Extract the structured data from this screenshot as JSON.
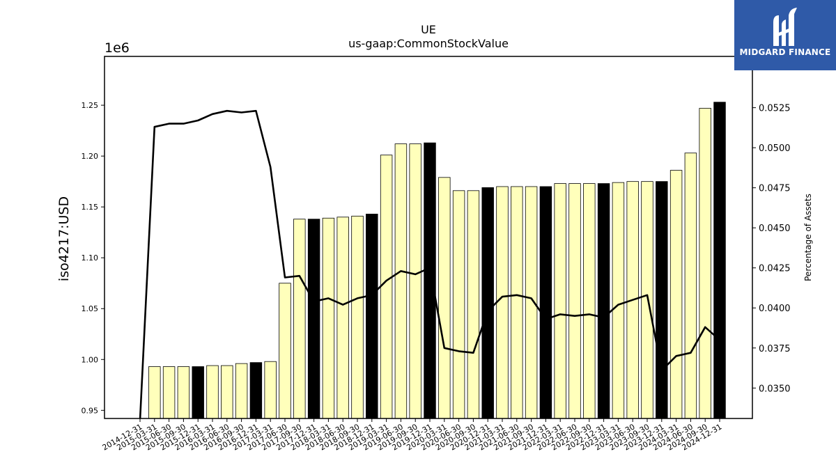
{
  "chart_data": {
    "type": "bar",
    "title": "UE",
    "subtitle": "us-gaap:CommonStockValue",
    "ylabel": "iso4217:USD",
    "y_offset_label": "1e6",
    "y2label": "Percentage of Assets",
    "ylim": [
      942000,
      1298000
    ],
    "y2lim": [
      0.0331,
      0.0557
    ],
    "yticks": [
      "0.95",
      "1.00",
      "1.05",
      "1.10",
      "1.15",
      "1.20",
      "1.25"
    ],
    "y2ticks": [
      "0.0350",
      "0.0375",
      "0.0400",
      "0.0425",
      "0.0450",
      "0.0475",
      "0.0500",
      "0.0525"
    ],
    "grid": false,
    "categories": [
      "2014-12-31",
      "2015-03-31",
      "2015-06-30",
      "2015-09-30",
      "2015-12-31",
      "2016-03-31",
      "2016-06-30",
      "2016-09-30",
      "2016-12-31",
      "2017-03-31",
      "2017-06-30",
      "2017-09-30",
      "2017-12-31",
      "2018-03-31",
      "2018-06-30",
      "2018-09-30",
      "2018-12-31",
      "2019-03-31",
      "2019-06-30",
      "2019-09-30",
      "2019-12-31",
      "2020-03-31",
      "2020-06-30",
      "2020-09-30",
      "2020-12-31",
      "2021-03-31",
      "2021-06-30",
      "2021-09-30",
      "2021-12-31",
      "2022-03-31",
      "2022-06-30",
      "2022-09-30",
      "2022-12-31",
      "2023-03-31",
      "2023-06-30",
      "2023-09-30",
      "2023-12-31",
      "2024-03-31",
      "2024-06-30",
      "2024-09-30",
      "2024-12-31"
    ],
    "series": [
      {
        "kind": "bar",
        "values": [
          null,
          993000,
          993000,
          993000,
          993000,
          994000,
          994000,
          996000,
          997000,
          998000,
          1075000,
          1138000,
          1138000,
          1139000,
          1140000,
          1141000,
          1143000,
          1201000,
          1212000,
          1212000,
          1213000,
          1179000,
          1166000,
          1166000,
          1169000,
          1170000,
          1170000,
          1170000,
          1170000,
          1173000,
          1173000,
          1173000,
          1173000,
          1174000,
          1175000,
          1175000,
          1175000,
          1186000,
          1203000,
          1247000,
          1253000
        ],
        "highlight": [
          false,
          false,
          false,
          false,
          true,
          false,
          false,
          false,
          true,
          false,
          false,
          false,
          true,
          false,
          false,
          false,
          true,
          false,
          false,
          false,
          true,
          false,
          false,
          false,
          true,
          false,
          false,
          false,
          true,
          false,
          false,
          false,
          true,
          false,
          false,
          false,
          true,
          false,
          false,
          false,
          true
        ],
        "color": "#ffffbb",
        "highlight_color": "#000000"
      },
      {
        "kind": "line",
        "axis": "right",
        "values": [
          0.033,
          0.0513,
          0.0515,
          0.0515,
          0.0517,
          0.0521,
          0.0523,
          0.0522,
          0.0523,
          0.0488,
          0.0419,
          0.042,
          0.0404,
          0.0406,
          0.0402,
          0.0406,
          0.0408,
          0.0417,
          0.0423,
          0.0421,
          0.0425,
          0.0375,
          0.0373,
          0.0372,
          0.0398,
          0.0407,
          0.0408,
          0.0406,
          0.0393,
          0.0396,
          0.0395,
          0.0396,
          0.0394,
          0.0402,
          0.0405,
          0.0408,
          0.0361,
          0.037,
          0.0372,
          0.0388,
          0.038
        ],
        "color": "#000000"
      }
    ]
  },
  "logo": {
    "text": "MIDGARD FINANCE",
    "color": "#2f5aa8"
  }
}
